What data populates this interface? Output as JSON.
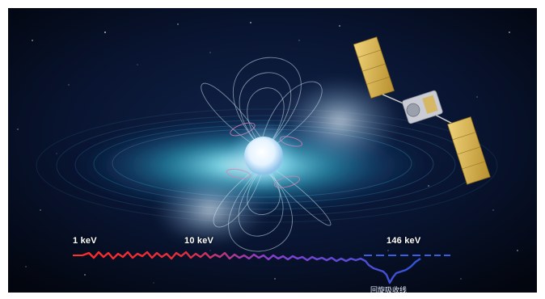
{
  "scene": {
    "energy_labels": [
      "1 keV",
      "10 keV",
      "146 keV"
    ],
    "absorption_caption": "回旋吸收线"
  },
  "colors": {
    "background": "#050a1c",
    "disk_glow": "#3fd6e8",
    "star": "#eaf6ff",
    "field_lines": "#cfe8f0",
    "spectrum_start": "#ff2a2a",
    "spectrum_mid": "#8a3fd0",
    "spectrum_end": "#2f55d8",
    "satellite_panel": "#d9b24a"
  }
}
